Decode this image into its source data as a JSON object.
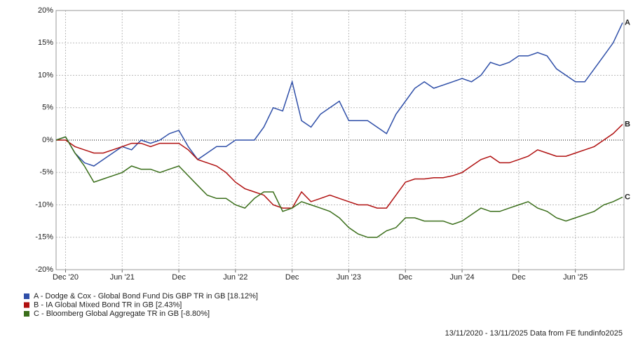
{
  "chart_data": {
    "type": "line",
    "categories": [
      null,
      "Dec '20",
      null,
      null,
      null,
      null,
      null,
      "Jun '21",
      null,
      null,
      null,
      null,
      null,
      "Dec",
      null,
      null,
      null,
      null,
      null,
      "Jun '22",
      null,
      null,
      null,
      null,
      null,
      "Dec",
      null,
      null,
      null,
      null,
      null,
      "Jun '23",
      null,
      null,
      null,
      null,
      null,
      "Dec",
      null,
      null,
      null,
      null,
      null,
      "Jun '24",
      null,
      null,
      null,
      null,
      null,
      "Dec",
      null,
      null,
      null,
      null,
      null,
      "Jun '25",
      null,
      null,
      null,
      null,
      null
    ],
    "series": [
      {
        "name": "A - Dodge & Cox - Global Bond Fund Dis GBP TR in GB [18.12%]",
        "label": "A",
        "color": "#2f4fa8",
        "values": [
          0,
          0.5,
          -2,
          -3.5,
          -4,
          -3,
          -2,
          -1,
          -1.5,
          0,
          -0.5,
          0,
          1,
          1.5,
          -1,
          -3,
          -2,
          -1,
          -1,
          0,
          0,
          0,
          2,
          5,
          4.5,
          9,
          3,
          2,
          4,
          5,
          6,
          3,
          3,
          3,
          2,
          1,
          4,
          6,
          8,
          9,
          8,
          8.5,
          9,
          9.5,
          9,
          10,
          12,
          11.5,
          12,
          13,
          13,
          13.5,
          13,
          11,
          10,
          9,
          9,
          11,
          13,
          15,
          18.12
        ]
      },
      {
        "name": "B - IA Global Mixed Bond TR in GB [2.43%]",
        "label": "B",
        "color": "#b01010",
        "values": [
          0,
          0,
          -1,
          -1.5,
          -2,
          -2,
          -1.5,
          -1,
          -0.5,
          -0.5,
          -1,
          -0.5,
          -0.5,
          -0.5,
          -1.5,
          -3,
          -3.5,
          -4,
          -5,
          -6.5,
          -7.5,
          -8,
          -8.5,
          -10,
          -10.5,
          -10.5,
          -8,
          -9.5,
          -9,
          -8.5,
          -9,
          -9.5,
          -10,
          -10,
          -10.5,
          -10.5,
          -8.5,
          -6.5,
          -6,
          -6,
          -5.8,
          -5.8,
          -5.5,
          -5,
          -4,
          -3,
          -2.5,
          -3.5,
          -3.5,
          -3,
          -2.5,
          -1.5,
          -2,
          -2.5,
          -2.5,
          -2,
          -1.5,
          -1,
          0,
          1,
          2.43
        ]
      },
      {
        "name": "C - Bloomberg Global Aggregate TR in GB [-8.80%]",
        "label": "C",
        "color": "#3a6e1a",
        "values": [
          0,
          0.5,
          -2,
          -4,
          -6.5,
          -6,
          -5.5,
          -5,
          -4,
          -4.5,
          -4.5,
          -5,
          -4.5,
          -4,
          -5.5,
          -7,
          -8.5,
          -9,
          -9,
          -10,
          -10.5,
          -9,
          -8,
          -8,
          -11,
          -10.5,
          -9.5,
          -10,
          -10.5,
          -11,
          -12,
          -13.5,
          -14.5,
          -15,
          -15,
          -14,
          -13.5,
          -12,
          -12,
          -12.5,
          -12.5,
          -12.5,
          -13,
          -12.5,
          -11.5,
          -10.5,
          -11,
          -11,
          -10.5,
          -10,
          -9.5,
          -10.5,
          -11,
          -12,
          -12.5,
          -12,
          -11.5,
          -11,
          -10,
          -9.5,
          -8.8
        ]
      }
    ],
    "ylim": [
      -20,
      20
    ],
    "yticks": [
      {
        "value": -20,
        "label": "-20%"
      },
      {
        "value": -15,
        "label": "-15%"
      },
      {
        "value": -10,
        "label": "-10%"
      },
      {
        "value": -5,
        "label": "-5%"
      },
      {
        "value": 0,
        "label": "0%"
      },
      {
        "value": 5,
        "label": "5%"
      },
      {
        "value": 10,
        "label": "10%"
      },
      {
        "value": 15,
        "label": "15%"
      },
      {
        "value": 20,
        "label": "20%"
      }
    ],
    "grid": true,
    "source": "13/11/2020 - 13/11/2025 Data from FE fundinfo2025"
  }
}
